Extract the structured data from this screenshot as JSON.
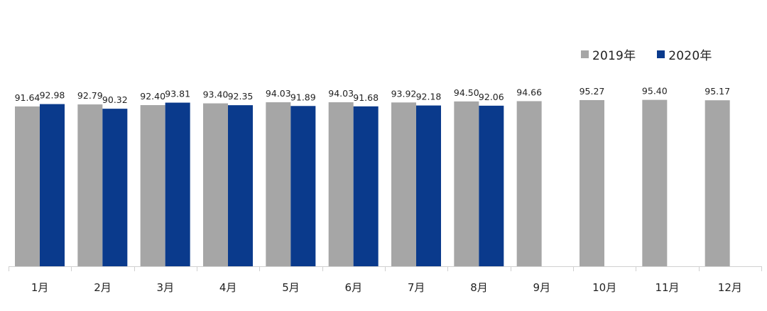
{
  "chart_data": {
    "type": "bar",
    "categories": [
      "1月",
      "2月",
      "3月",
      "4月",
      "5月",
      "6月",
      "7月",
      "8月",
      "9月",
      "10月",
      "11月",
      "12月"
    ],
    "series": [
      {
        "name": "2019年",
        "color": "#a6a6a6",
        "values": [
          91.64,
          92.79,
          92.4,
          93.4,
          94.03,
          94.03,
          93.92,
          94.5,
          94.66,
          95.27,
          95.4,
          95.17
        ],
        "labels": [
          "91.64",
          "92.79",
          "92.40",
          "93.40",
          "94.03",
          "94.03",
          "93.92",
          "94.50",
          "94.66",
          "95.27",
          "95.40",
          "95.17"
        ]
      },
      {
        "name": "2020年",
        "color": "#0a3a8c",
        "values": [
          92.98,
          90.32,
          93.81,
          92.35,
          91.89,
          91.68,
          92.18,
          92.06,
          null,
          null,
          null,
          null
        ],
        "labels": [
          "92.98",
          "90.32",
          "93.81",
          "92.35",
          "91.89",
          "91.68",
          "92.18",
          "92.06",
          null,
          null,
          null,
          null
        ]
      }
    ],
    "title": "",
    "xlabel": "",
    "ylabel": "",
    "ylim": [
      0,
      100
    ],
    "grid": false,
    "legend_position": "top-right",
    "axis_color": "#d0d0d0"
  }
}
